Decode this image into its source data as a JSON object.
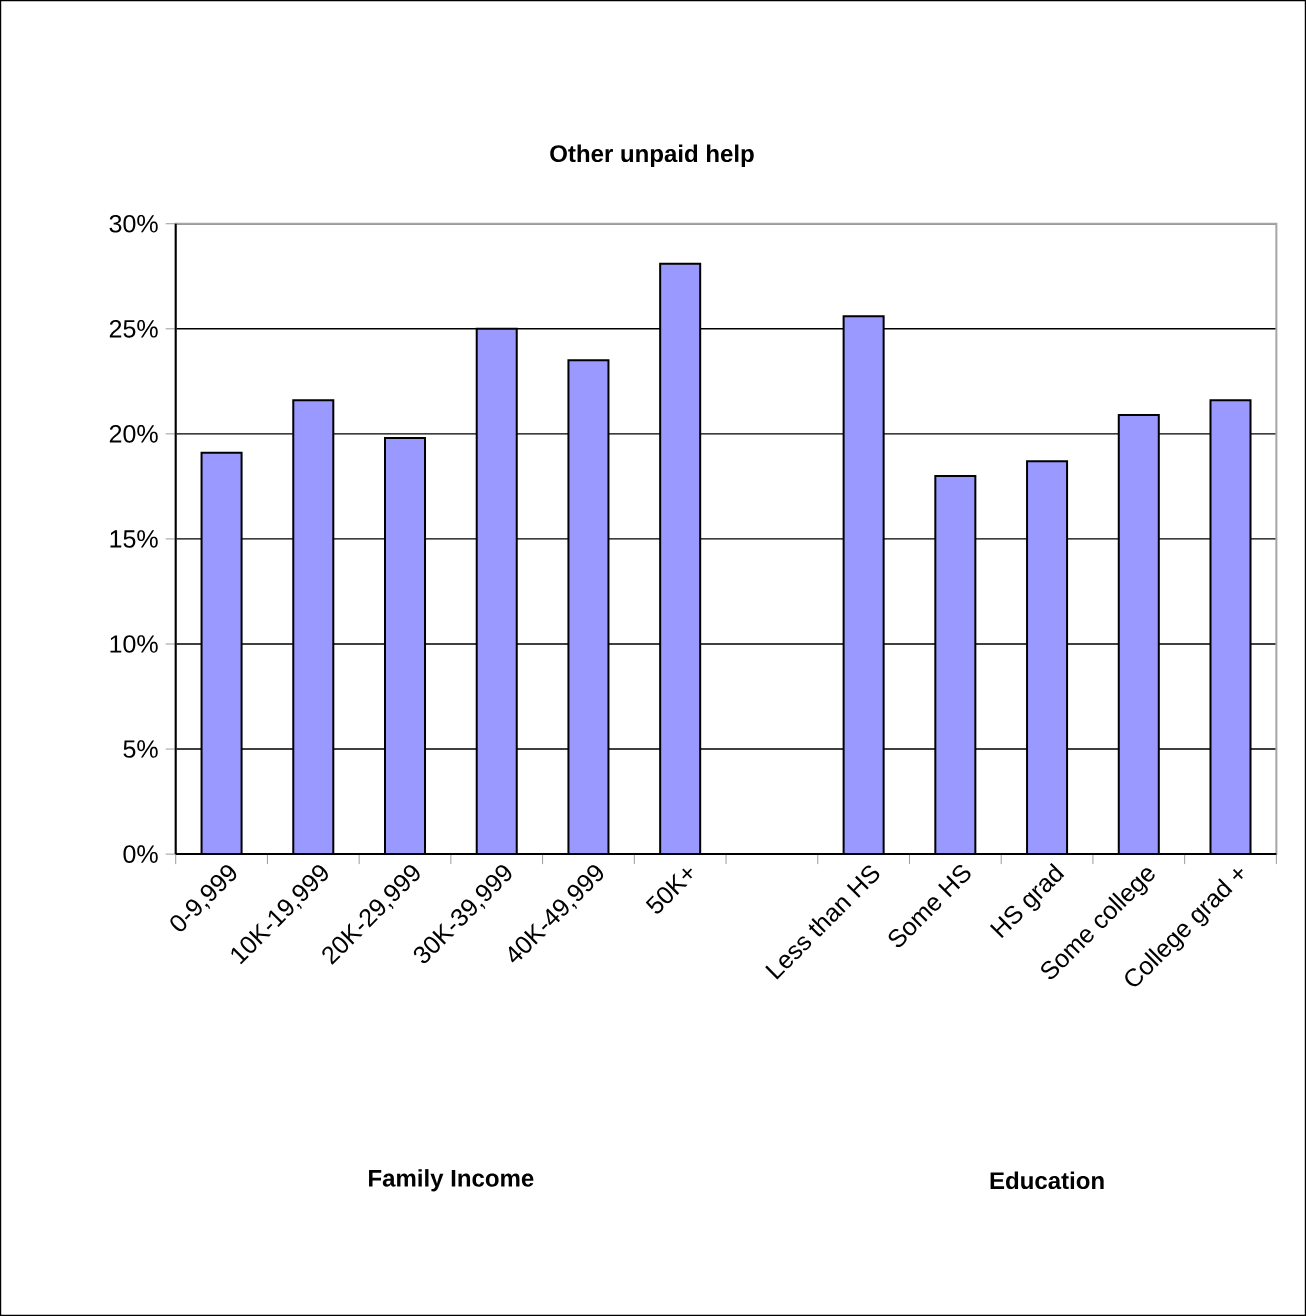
{
  "chart_data": {
    "type": "bar",
    "title": "Other unpaid help",
    "categories": [
      "0-9,999",
      "10K-19,999",
      "20K-29,999",
      "30K-39,999",
      "40K-49,999",
      "50K+",
      null,
      "Less than HS",
      "Some HS",
      "HS grad",
      "Some college",
      "College grad +"
    ],
    "values": [
      19.1,
      21.6,
      19.8,
      25.0,
      23.5,
      28.1,
      null,
      25.6,
      18.0,
      18.7,
      20.9,
      21.6
    ],
    "color": "#9999ff",
    "ylim": [
      0,
      30
    ],
    "yticks": [
      {
        "value": 0,
        "label": "0%"
      },
      {
        "value": 5,
        "label": "5%"
      },
      {
        "value": 10,
        "label": "10%"
      },
      {
        "value": 15,
        "label": "15%"
      },
      {
        "value": 20,
        "label": "20%"
      },
      {
        "value": 25,
        "label": "25%"
      },
      {
        "value": 30,
        "label": "30%"
      }
    ],
    "grid": "y",
    "annotations": [
      "Family Income",
      "Education"
    ]
  }
}
